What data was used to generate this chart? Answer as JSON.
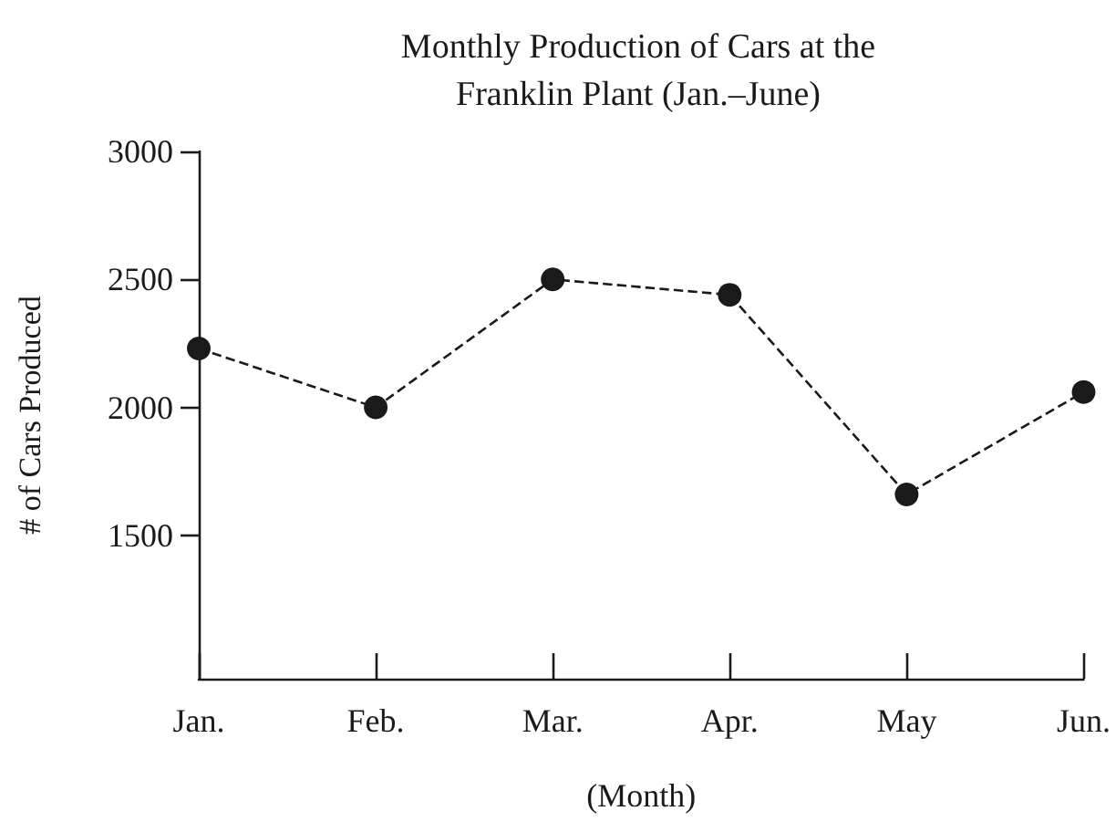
{
  "chart_data": {
    "type": "line",
    "title": "Monthly Production of Cars at the\nFranklin Plant (Jan.–June)",
    "xlabel": "(Month)",
    "ylabel": "# of Cars Produced",
    "categories": [
      "Jan.",
      "Feb.",
      "Mar.",
      "Apr.",
      "May",
      "Jun."
    ],
    "values": [
      2230,
      2000,
      2500,
      2440,
      1660,
      2060
    ],
    "color": "#1a1a1a",
    "ylim": [
      940,
      3000
    ],
    "yticks": [
      1500,
      2000,
      2500,
      3000
    ],
    "grid": false,
    "marker": "circle",
    "line_style": "dashed"
  }
}
